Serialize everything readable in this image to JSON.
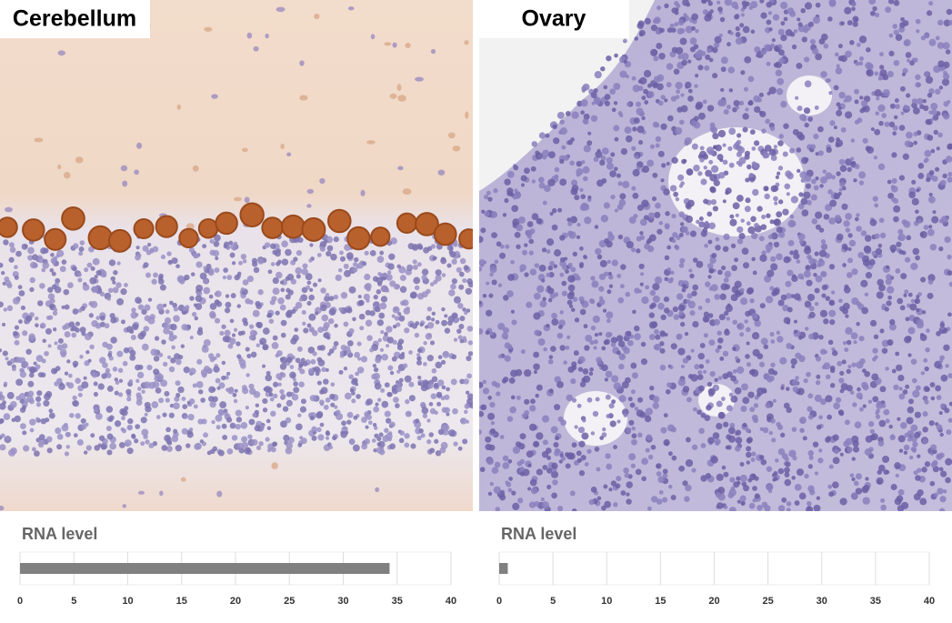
{
  "chart_data": [
    {
      "type": "bar",
      "label": "Cerebellum",
      "title": "RNA level",
      "values": [
        34.3
      ],
      "color": "#808080",
      "xlim": [
        0,
        40
      ],
      "xticks": [
        0,
        5,
        10,
        15,
        20,
        25,
        30,
        35,
        40
      ],
      "grid": true
    },
    {
      "type": "bar",
      "label": "Ovary",
      "title": "RNA level",
      "values": [
        0.8
      ],
      "color": "#808080",
      "xlim": [
        0,
        40
      ],
      "xticks": [
        0,
        5,
        10,
        15,
        20,
        25,
        30,
        35,
        40
      ],
      "grid": true
    }
  ]
}
